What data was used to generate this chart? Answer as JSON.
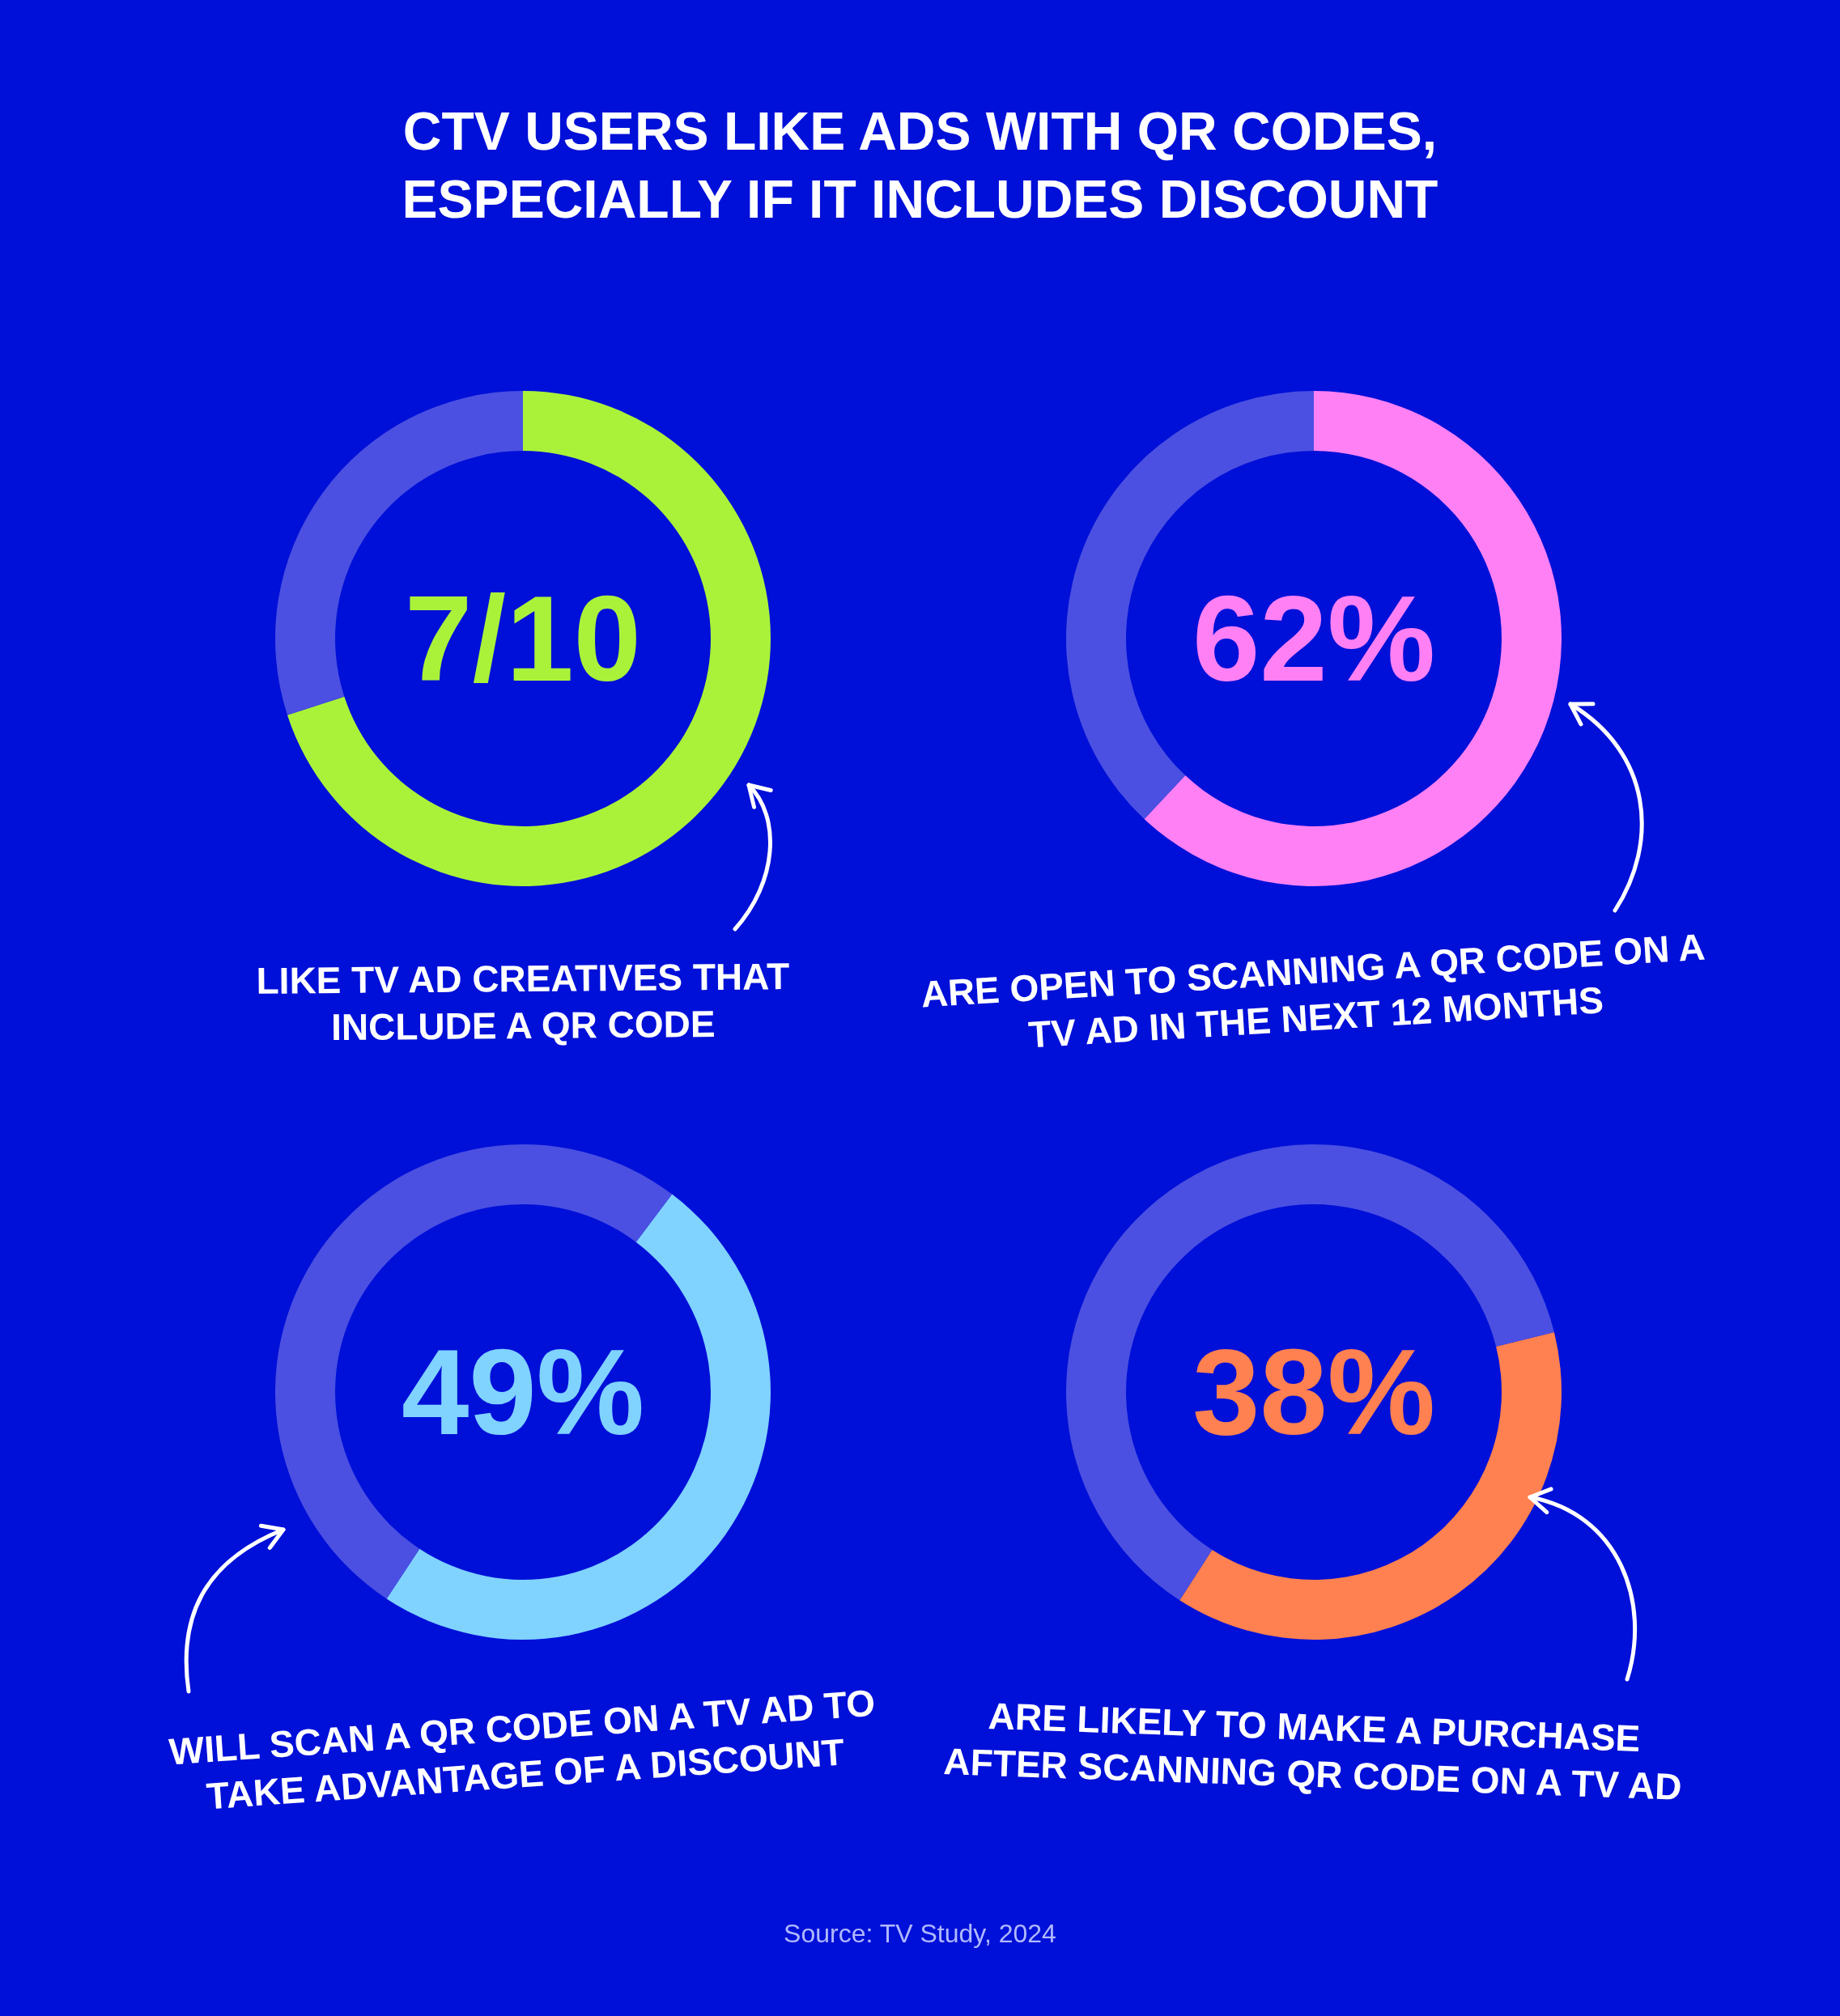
{
  "chart_data": [
    {
      "type": "donut",
      "title": "CTV USERS LIKE ADS WITH QR CODES, ESPECIALLY IF IT INCLUDES DISCOUNT",
      "categories": [
        null,
        null
      ],
      "values": [
        70,
        30
      ],
      "colors": [
        "#aaf23a",
        "#4b50e2"
      ],
      "annotations": [
        "LIKE TV AD CREATIVES THAT INCLUDE A QR CODE",
        {
          "text": "7/10"
        }
      ]
    },
    {
      "type": "donut",
      "categories": [
        null,
        null
      ],
      "values": [
        62,
        38
      ],
      "colors": [
        "#ff80f5",
        "#4b50e2"
      ],
      "value_labels": [
        "62%",
        null
      ],
      "annotations": [
        "ARE OPEN TO SCANNING A QR CODE ON A TV AD IN THE NEXT 12 MONTHS"
      ]
    },
    {
      "type": "donut",
      "categories": [
        null,
        null
      ],
      "values": [
        49,
        51
      ],
      "colors": [
        "#80d2ff",
        "#4b50e2"
      ],
      "value_labels": [
        "49%",
        null
      ],
      "annotations": [
        "WILL SCAN A QR CODE ON A TV AD TO TAKE ADVANTAGE OF A DISCOUNT"
      ]
    },
    {
      "type": "donut",
      "categories": [
        null,
        null
      ],
      "values": [
        38,
        62
      ],
      "colors": [
        "#ff8050",
        "#4b50e2"
      ],
      "value_labels": [
        "38%",
        null
      ],
      "annotations": [
        "ARE LIKELY TO MAKE A PURCHASE AFTER SCANNING QR CODE ON A TV AD",
        "Source: TV Study, 2024"
      ]
    }
  ]
}
